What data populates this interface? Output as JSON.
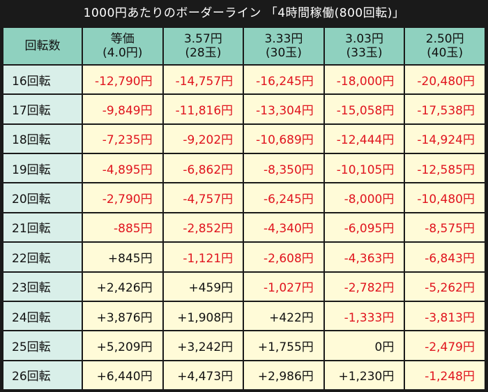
{
  "title": "1000円あたりのボーダーライン 「4時間稼働(800回転)」",
  "header": {
    "row_label": "回転数",
    "columns": [
      {
        "line1": "等価",
        "line2": "(4.0円)"
      },
      {
        "line1": "3.57円",
        "line2": "(28玉)"
      },
      {
        "line1": "3.33円",
        "line2": "(30玉)"
      },
      {
        "line1": "3.03円",
        "line2": "(33玉)"
      },
      {
        "line1": "2.50円",
        "line2": "(40玉)"
      }
    ]
  },
  "rows": [
    {
      "label": "16回転",
      "values": [
        "-12,790円",
        "-14,757円",
        "-16,245円",
        "-18,000円",
        "-20,480円"
      ]
    },
    {
      "label": "17回転",
      "values": [
        "-9,849円",
        "-11,816円",
        "-13,304円",
        "-15,058円",
        "-17,538円"
      ]
    },
    {
      "label": "18回転",
      "values": [
        "-7,235円",
        "-9,202円",
        "-10,689円",
        "-12,444円",
        "-14,924円"
      ]
    },
    {
      "label": "19回転",
      "values": [
        "-4,895円",
        "-6,862円",
        "-8,350円",
        "-10,105円",
        "-12,585円"
      ]
    },
    {
      "label": "20回転",
      "values": [
        "-2,790円",
        "-4,757円",
        "-6,245円",
        "-8,000円",
        "-10,480円"
      ]
    },
    {
      "label": "21回転",
      "values": [
        "-885円",
        "-2,852円",
        "-4,340円",
        "-6,095円",
        "-8,575円"
      ]
    },
    {
      "label": "22回転",
      "values": [
        "+845円",
        "-1,121円",
        "-2,608円",
        "-4,363円",
        "-6,843円"
      ]
    },
    {
      "label": "23回転",
      "values": [
        "+2,426円",
        "+459円",
        "-1,027円",
        "-2,782円",
        "-5,262円"
      ]
    },
    {
      "label": "24回転",
      "values": [
        "+3,876円",
        "+1,908円",
        "+422円",
        "-1,333円",
        "-3,813円"
      ]
    },
    {
      "label": "25回転",
      "values": [
        "+5,209円",
        "+3,242円",
        "+1,755円",
        "0円",
        "-2,479円"
      ]
    },
    {
      "label": "26回転",
      "values": [
        "+6,440円",
        "+4,473円",
        "+2,986円",
        "+1,230円",
        "-1,248円"
      ]
    }
  ],
  "colors": {
    "background": "#1a1a1a",
    "header_bg": "#8fd1bf",
    "rowhead_bg": "#d9efe9",
    "cell_bg": "#fffbd8",
    "negative": "#e0141e",
    "positive": "#111111"
  }
}
